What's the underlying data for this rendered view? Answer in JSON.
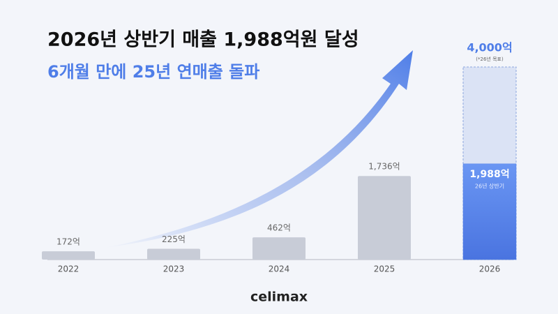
{
  "chart_data": {
    "type": "bar",
    "title": "2026년 상반기 매출 1,988억원 달성",
    "subtitle": "6개월 만에 25년 연매출 돌파",
    "categories": [
      "2022",
      "2023",
      "2024",
      "2025",
      "2026"
    ],
    "values": [
      172,
      225,
      462,
      1736,
      1988
    ],
    "value_labels": [
      "172억",
      "225억",
      "462억",
      "1,736억",
      "1,988억"
    ],
    "value_note": "26년 상반기",
    "color": "#c8ccd7",
    "highlight_color": "#4f7ee8",
    "target": {
      "value": 4000,
      "label": "4,000억",
      "note": "(*26년 목표)",
      "color": "#dbe3f5"
    }
  },
  "brand": "celimax"
}
